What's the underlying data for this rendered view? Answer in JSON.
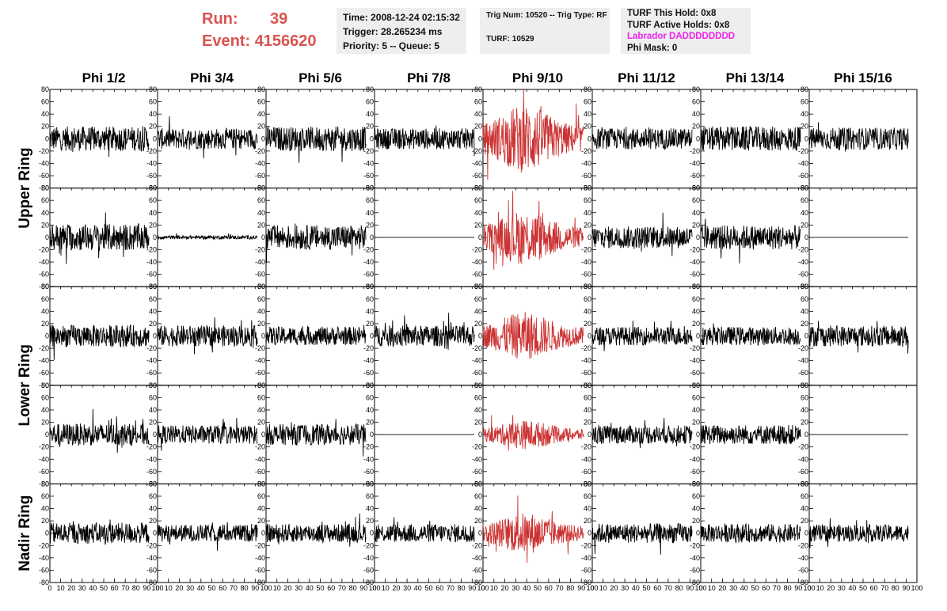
{
  "header": {
    "run_label": "Run:",
    "run_value": "39",
    "event_label": "Event:",
    "event_value": "4156620"
  },
  "info_time": {
    "time": "Time: 2008-12-24 02:15:32",
    "trigger": "Trigger: 28.265234 ms",
    "priority": "Priority: 5 -- Queue: 5"
  },
  "info_trig": {
    "trig_line": "Trig Num: 10520 -- Trig Type: RF",
    "turf_line": "TURF: 10529"
  },
  "info_turf": {
    "this_hold": "TURF This Hold: 0x8",
    "active_holds": "TURF Active Holds: 0x8",
    "labrador": "Labrador DADDDDDDDD",
    "phi_mask": "Phi Mask: 0"
  },
  "colors": {
    "normal_trace": "#000000",
    "triggered_trace": "#cc3333",
    "run_text": "#d9534f",
    "labrador_text": "#ee22ee",
    "info_bg": "#eeeeee"
  },
  "chart_data": {
    "type": "line",
    "columns": [
      "Phi 1/2",
      "Phi 3/4",
      "Phi 5/6",
      "Phi 7/8",
      "Phi 9/10",
      "Phi 11/12",
      "Phi 13/14",
      "Phi 15/16"
    ],
    "rings": [
      "Upper Ring",
      "Lower Ring",
      "Nadir Ring"
    ],
    "xlim": [
      0,
      100
    ],
    "ylim": [
      -80,
      80
    ],
    "x_ticks": [
      0,
      10,
      20,
      30,
      40,
      50,
      60,
      70,
      80,
      90,
      100
    ],
    "y_ticks": [
      -80,
      -60,
      -40,
      -20,
      0,
      20,
      40,
      60,
      80
    ],
    "triggered_column": "Phi 9/10",
    "panel_rows": [
      {
        "ring": "Upper Ring",
        "amplitudes": [
          20,
          17,
          20,
          17,
          40,
          17,
          20,
          18
        ]
      },
      {
        "ring": "Upper Ring",
        "amplitudes": [
          22,
          3,
          20,
          0,
          32,
          18,
          20,
          0
        ]
      },
      {
        "ring": "Lower Ring",
        "amplitudes": [
          18,
          17,
          15,
          17,
          28,
          15,
          15,
          17
        ]
      },
      {
        "ring": "Lower Ring",
        "amplitudes": [
          18,
          15,
          17,
          0,
          17,
          15,
          16,
          0
        ]
      },
      {
        "ring": "Nadir Ring",
        "amplitudes": [
          17,
          14,
          15,
          15,
          24,
          16,
          15,
          14
        ]
      }
    ]
  }
}
